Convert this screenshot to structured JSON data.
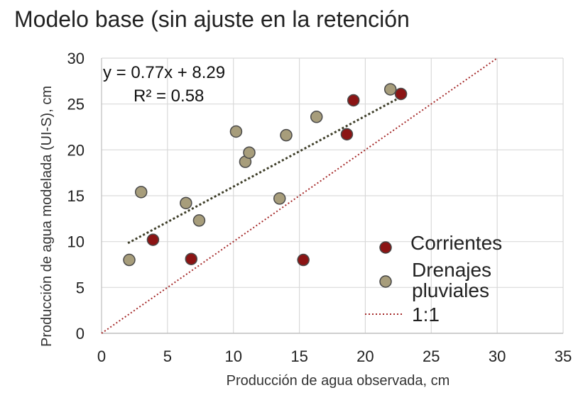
{
  "chart_data": {
    "type": "scatter",
    "title": "Modelo base (sin ajuste en la retención",
    "xlabel": "Producción de agua observada, cm",
    "ylabel": "Producción de agua modelada (UI-S), cm",
    "xlim": [
      0,
      35
    ],
    "ylim": [
      0,
      30
    ],
    "x_ticks": [
      0,
      5,
      10,
      15,
      20,
      25,
      30,
      35
    ],
    "y_ticks": [
      0,
      5,
      10,
      15,
      20,
      25,
      30
    ],
    "grid": true,
    "legend_position": "bottom-right",
    "series": [
      {
        "name": "Corrientes",
        "color": "#8b1414",
        "x": [
          3.9,
          6.8,
          15.3,
          18.6,
          19.1,
          22.7
        ],
        "y": [
          10.2,
          8.1,
          8.0,
          21.7,
          25.4,
          26.1
        ]
      },
      {
        "name": "Drenajes pluviales",
        "color": "#a79d7b",
        "x": [
          2.1,
          3.0,
          6.4,
          7.4,
          10.2,
          10.9,
          11.2,
          13.5,
          14.0,
          16.3,
          21.9
        ],
        "y": [
          8.0,
          15.4,
          14.2,
          12.3,
          22.0,
          18.7,
          19.7,
          14.7,
          21.6,
          23.6,
          26.6
        ]
      }
    ],
    "trendline": {
      "equation": "y = 0.77x + 8.29",
      "r2_label": "R² = 0.58",
      "slope": 0.77,
      "intercept": 8.29,
      "x_range": [
        2.0,
        22.7
      ],
      "color": "#3f3f2a"
    },
    "reference_line": {
      "name": "1:1",
      "color": "#a52a2a",
      "x": [
        0,
        30
      ],
      "y": [
        0,
        30
      ]
    },
    "legend": [
      {
        "name": "Corrientes",
        "lines": [
          "Corrientes"
        ]
      },
      {
        "name": "Drenajes pluviales",
        "lines": [
          "Drenajes",
          "pluviales"
        ]
      },
      {
        "name": "1:1",
        "lines": [
          "1:1"
        ]
      }
    ]
  }
}
